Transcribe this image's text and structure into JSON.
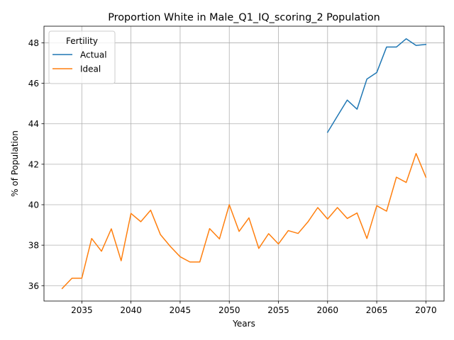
{
  "chart_data": {
    "type": "line",
    "title": "Proportion White in Male_Q1_IQ_scoring_2 Population",
    "xlabel": "Years",
    "ylabel": "% of Population",
    "xlim": [
      2031.15,
      2071.85
    ],
    "ylim": [
      35.24,
      48.82
    ],
    "xticks": [
      2035,
      2040,
      2045,
      2050,
      2055,
      2060,
      2065,
      2070
    ],
    "yticks": [
      36,
      38,
      40,
      42,
      44,
      46,
      48
    ],
    "grid": true,
    "legend": {
      "title": "Fertility",
      "placement": "top-left"
    },
    "series": [
      {
        "name": "Actual",
        "color": "#1f77b4",
        "x": [
          2060,
          2061,
          2062,
          2063,
          2064,
          2065,
          2066,
          2067,
          2068,
          2069,
          2070
        ],
        "y": [
          43.58,
          44.38,
          45.17,
          44.72,
          46.21,
          46.53,
          47.79,
          47.79,
          48.2,
          47.87,
          47.92
        ]
      },
      {
        "name": "Ideal",
        "color": "#ff7f0e",
        "x": [
          2033,
          2034,
          2035,
          2036,
          2037,
          2038,
          2039,
          2040,
          2041,
          2042,
          2043,
          2044,
          2045,
          2046,
          2047,
          2048,
          2049,
          2050,
          2051,
          2052,
          2053,
          2054,
          2055,
          2056,
          2057,
          2058,
          2059,
          2060,
          2061,
          2062,
          2063,
          2064,
          2065,
          2066,
          2067,
          2068,
          2069,
          2070
        ],
        "y": [
          35.86,
          36.37,
          36.37,
          38.33,
          37.7,
          38.81,
          37.23,
          39.57,
          39.16,
          39.73,
          38.52,
          37.94,
          37.43,
          37.17,
          37.17,
          38.82,
          38.31,
          40.0,
          38.68,
          39.35,
          37.84,
          38.57,
          38.06,
          38.72,
          38.58,
          39.15,
          39.86,
          39.29,
          39.86,
          39.32,
          39.59,
          38.33,
          39.95,
          39.68,
          41.36,
          41.1,
          42.53,
          41.36
        ]
      }
    ]
  }
}
